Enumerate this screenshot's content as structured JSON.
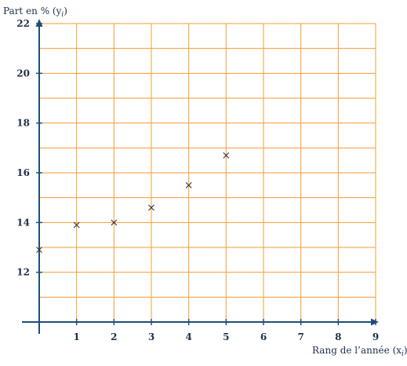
{
  "chart_data": {
    "type": "scatter",
    "title": "",
    "xlabel": "Rang de l’année (x",
    "xlabel_sub": "i",
    "ylabel": "Part en % (y",
    "ylabel_sub": "i",
    "xlim": [
      0,
      9
    ],
    "ylim": [
      10,
      22
    ],
    "x_ticks": [
      1,
      2,
      3,
      4,
      5,
      6,
      7,
      8,
      9
    ],
    "y_ticks": [
      12,
      14,
      16,
      18,
      20,
      22
    ],
    "x_minor_step": 1,
    "y_minor_step": 1,
    "grid": true,
    "marker": "x",
    "colors": {
      "grid": "#f39c34",
      "axes": "#1f4e79",
      "points": "#333333"
    },
    "points": [
      {
        "x": 0,
        "y": 12.9
      },
      {
        "x": 1,
        "y": 13.9
      },
      {
        "x": 2,
        "y": 14.0
      },
      {
        "x": 3,
        "y": 14.6
      },
      {
        "x": 4,
        "y": 15.5
      },
      {
        "x": 5,
        "y": 16.7
      }
    ]
  }
}
